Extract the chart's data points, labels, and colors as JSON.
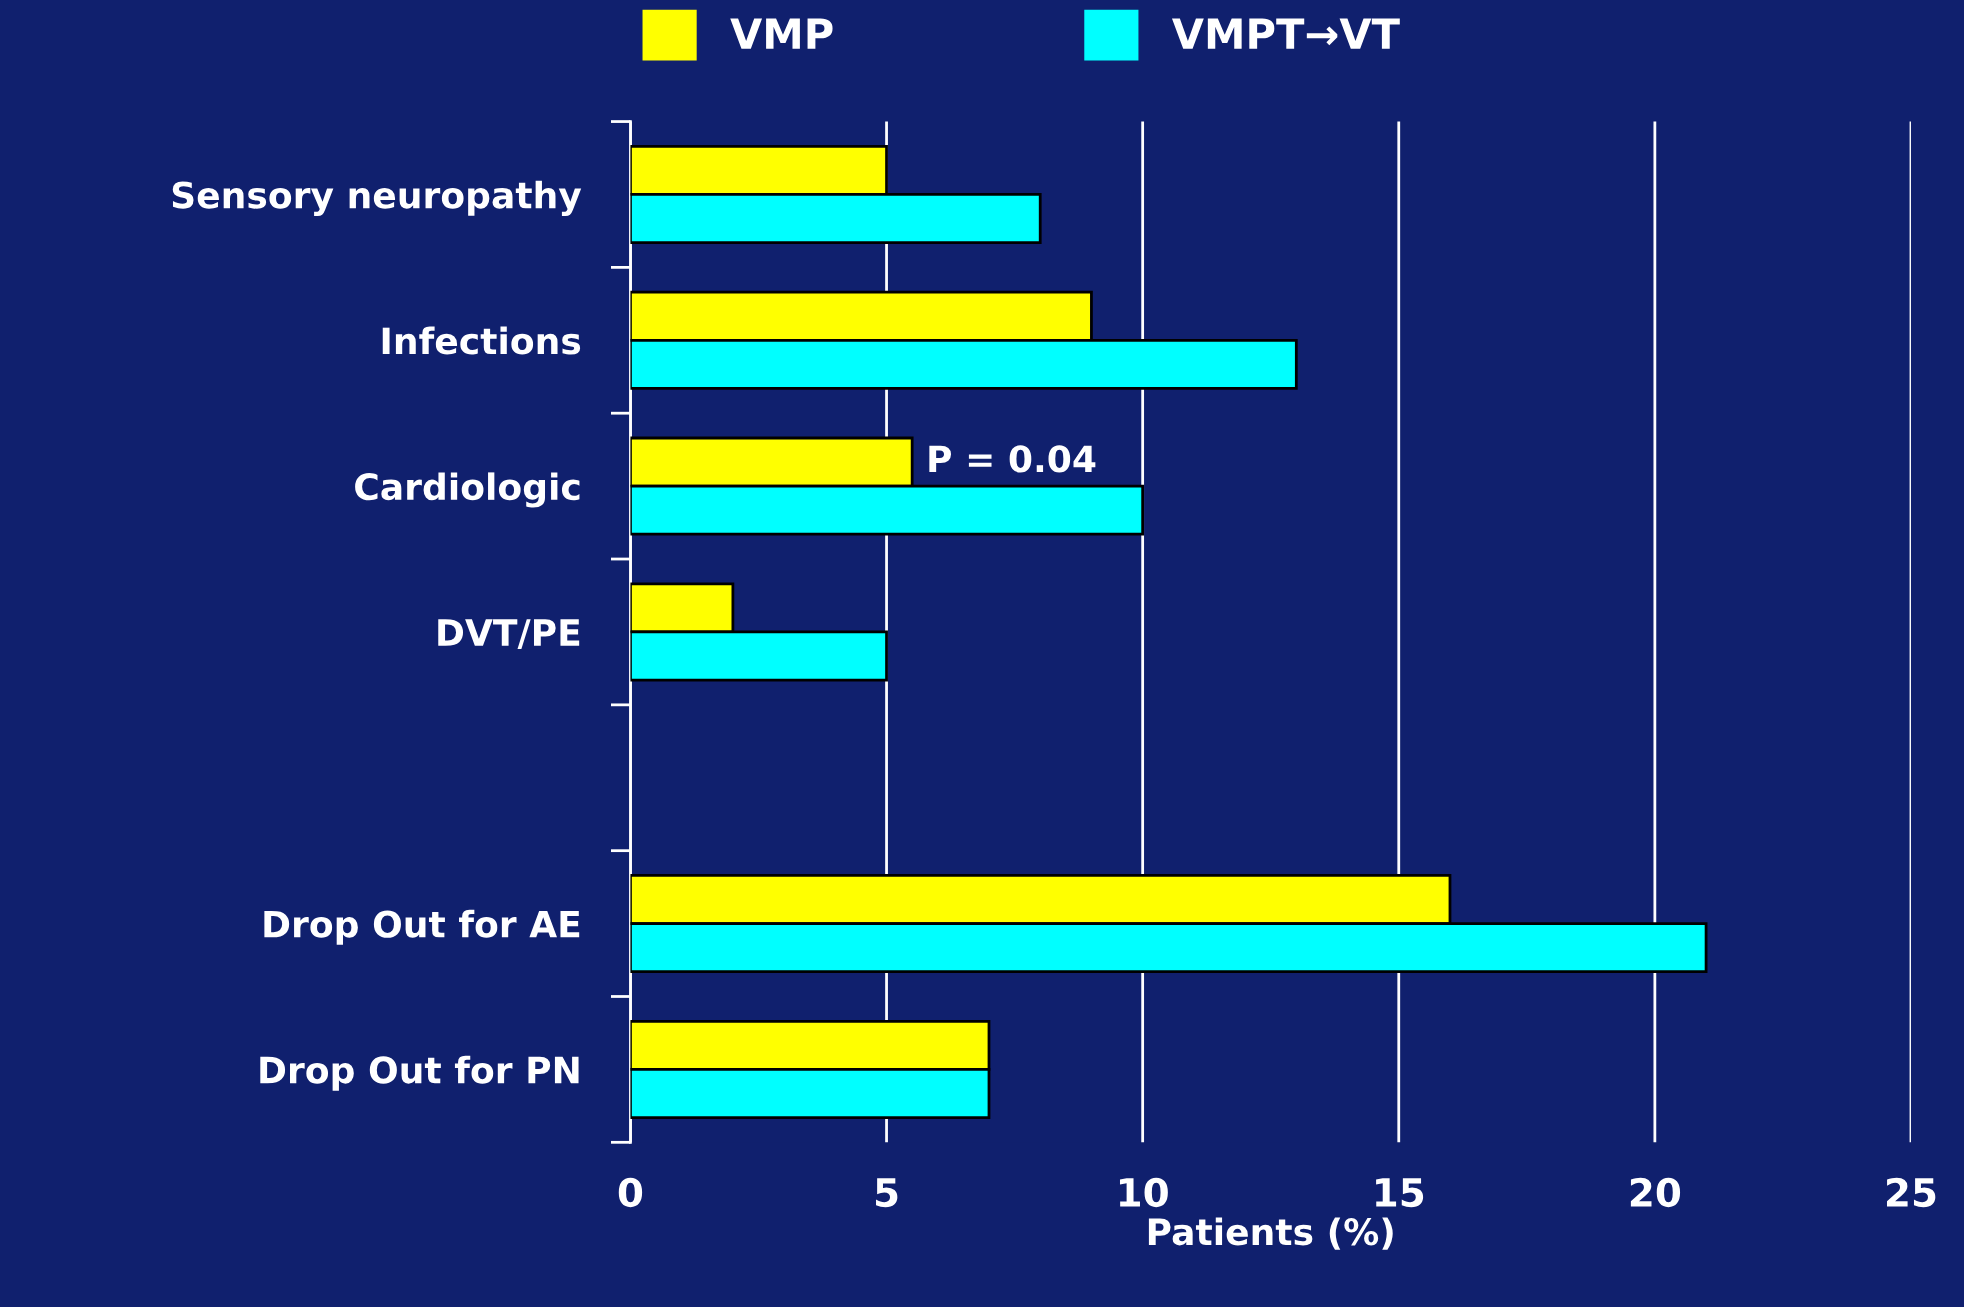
{
  "chart_data": {
    "type": "bar",
    "orientation": "horizontal",
    "categories": [
      "Sensory neuropathy",
      "Infections",
      "Cardiologic",
      "DVT/PE",
      null,
      "Drop Out for AE",
      "Drop Out for PN"
    ],
    "series": [
      {
        "name": "VMP",
        "color": "#ffff00",
        "values": [
          5,
          9,
          5.5,
          2,
          null,
          16,
          7
        ]
      },
      {
        "name": "VMPT→VT",
        "color": "#00ffff",
        "values": [
          8,
          13,
          10,
          5,
          null,
          21,
          7
        ]
      }
    ],
    "xlabel": "Patients (%)",
    "xlim": [
      0,
      25
    ],
    "xticks": [
      0,
      5,
      10,
      15,
      20,
      25
    ],
    "grid": "x",
    "legend": "top",
    "annotations": [
      {
        "text": "P = 0.04",
        "x": 5.5,
        "y": "Cardiologic"
      }
    ]
  }
}
